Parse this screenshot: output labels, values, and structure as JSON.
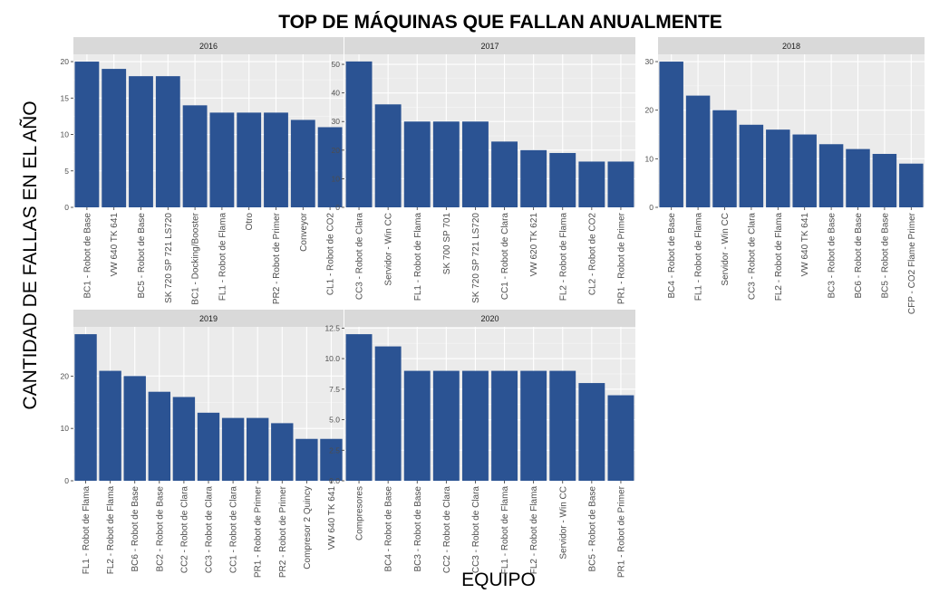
{
  "chart_data": {
    "type": "bar",
    "title": "TOP DE MÁQUINAS QUE FALLAN ANUALMENTE",
    "xlabel": "EQUIPO",
    "ylabel": "CANTIDAD DE FALLAS EN EL AÑO",
    "bar_color": "#2b5393",
    "panel_bg": "#ebebeb",
    "strip_bg": "#d9d9d9",
    "grid": true,
    "facets": [
      {
        "strip": "2016",
        "categories": [
          "BC1 - Robot de Base",
          "VW 640 TK 641",
          "BC5 - Robot de Base",
          "SK 720 SP 721 LS720",
          "BC1 - Docking/Booster",
          "FL1 - Robot de Flama",
          "Otro",
          "PR2 - Robot de Primer",
          "Conveyor",
          "CL1 - Robot de CO2"
        ],
        "values": [
          20,
          19,
          18,
          18,
          14,
          13,
          13,
          13,
          12,
          11
        ],
        "ylim": [
          0,
          21
        ],
        "yticks": [
          0,
          5,
          10,
          15,
          20
        ],
        "ytick_labels": [
          "0",
          "5",
          "10",
          "15",
          "20"
        ]
      },
      {
        "strip": "2017",
        "categories": [
          "CC3 - Robot de Clara",
          "Servidor - Win CC",
          "FL1 - Robot de Flama",
          "SK 700 SP 701",
          "SK 720 SP 721 LS720",
          "CC1 - Robot de Clara",
          "VW 620 TK 621",
          "FL2 - Robot de Flama",
          "CL2 - Robot de CO2",
          "PR1 - Robot de Primer"
        ],
        "values": [
          51,
          36,
          30,
          30,
          30,
          23,
          20,
          19,
          16,
          16
        ],
        "ylim": [
          0,
          53.5
        ],
        "yticks": [
          0,
          10,
          20,
          30,
          40,
          50
        ],
        "ytick_labels": [
          "0",
          "10",
          "20",
          "30",
          "40",
          "50"
        ]
      },
      {
        "strip": "2018",
        "categories": [
          "BC4 - Robot de Base",
          "FL1 - Robot de Flama",
          "Servidor - Win CC",
          "CC3 - Robot de Clara",
          "FL2 - Robot de Flama",
          "VW 640 TK 641",
          "BC3 - Robot de Base",
          "BC6 - Robot de Base",
          "BC5 - Robot de Base",
          "CFP - CO2 Flame Primer"
        ],
        "values": [
          30,
          23,
          20,
          17,
          16,
          15,
          13,
          12,
          11,
          9
        ],
        "ylim": [
          0,
          31.5
        ],
        "yticks": [
          0,
          10,
          20,
          30
        ],
        "ytick_labels": [
          "0",
          "10",
          "20",
          "30"
        ]
      },
      {
        "strip": "2019",
        "categories": [
          "FL1 - Robot de Flama",
          "FL2 - Robot de Flama",
          "BC6 - Robot de Base",
          "BC2 - Robot de Base",
          "CC2 - Robot de Clara",
          "CC3 - Robot de Clara",
          "CC1 - Robot de Clara",
          "PR1 - Robot de Primer",
          "PR2 - Robot de Primer",
          "Compresor 2 Quincy",
          "VW 640 TK 641"
        ],
        "values": [
          28,
          21,
          20,
          17,
          16,
          13,
          12,
          12,
          11,
          8,
          8
        ],
        "ylim": [
          0,
          29.4
        ],
        "yticks": [
          0,
          10,
          20
        ],
        "ytick_labels": [
          "0",
          "10",
          "20"
        ]
      },
      {
        "strip": "2020",
        "categories": [
          "Compresores",
          "BC4 - Robot de Base",
          "BC3 - Robot de Base",
          "CC2 - Robot de Clara",
          "CC3 - Robot de Clara",
          "FL1 - Robot de Flama",
          "FL2 - Robot de Flama",
          "Servidor - Win CC",
          "BC5 - Robot de Base",
          "PR1 - Robot de Primer"
        ],
        "values": [
          12,
          11,
          9,
          9,
          9,
          9,
          9,
          9,
          8,
          7
        ],
        "ylim": [
          0,
          12.6
        ],
        "yticks": [
          0,
          2.5,
          5,
          7.5,
          10,
          12.5
        ],
        "ytick_labels": [
          "0.0",
          "2.5",
          "5.0",
          "7.5",
          "10.0",
          "12.5"
        ]
      }
    ]
  }
}
